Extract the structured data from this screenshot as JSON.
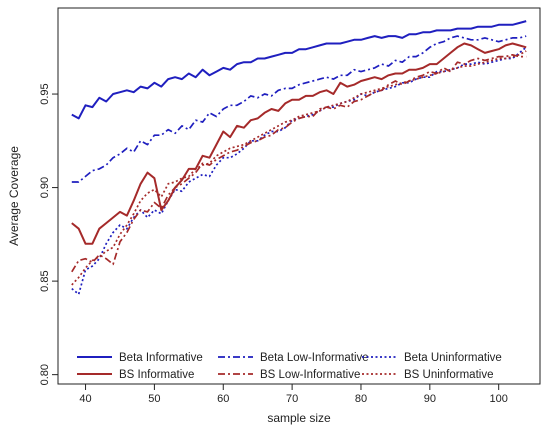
{
  "chart_data": {
    "type": "line",
    "title": "",
    "xlabel": "sample size",
    "ylabel": "Average Coverage",
    "xlim": [
      36,
      106
    ],
    "ylim": [
      0.795,
      0.996
    ],
    "x_ticks": [
      40,
      50,
      60,
      70,
      80,
      90,
      100
    ],
    "y_ticks": [
      0.8,
      0.85,
      0.9,
      0.95
    ],
    "y_tick_labels": [
      "0.80",
      "0.85",
      "0.90",
      "0.95"
    ],
    "grid": false,
    "legend_position": "bottom",
    "x": [
      38,
      39,
      40,
      41,
      42,
      43,
      44,
      45,
      46,
      47,
      48,
      49,
      50,
      51,
      52,
      53,
      54,
      55,
      56,
      57,
      58,
      59,
      60,
      61,
      62,
      63,
      64,
      65,
      66,
      67,
      68,
      69,
      70,
      71,
      72,
      73,
      74,
      75,
      76,
      77,
      78,
      79,
      80,
      81,
      82,
      83,
      84,
      85,
      86,
      87,
      88,
      89,
      90,
      91,
      92,
      93,
      94,
      95,
      96,
      97,
      98,
      99,
      100,
      101,
      102,
      103,
      104
    ],
    "series": [
      {
        "name": "Beta Informative",
        "color": "#1f1fbf",
        "dash": "solid",
        "width": 2,
        "values": [
          0.939,
          0.937,
          0.944,
          0.943,
          0.948,
          0.946,
          0.95,
          0.951,
          0.952,
          0.951,
          0.954,
          0.953,
          0.956,
          0.954,
          0.958,
          0.959,
          0.958,
          0.961,
          0.959,
          0.963,
          0.96,
          0.962,
          0.964,
          0.963,
          0.966,
          0.967,
          0.967,
          0.969,
          0.969,
          0.97,
          0.971,
          0.972,
          0.972,
          0.974,
          0.974,
          0.975,
          0.976,
          0.977,
          0.977,
          0.977,
          0.978,
          0.979,
          0.979,
          0.98,
          0.981,
          0.98,
          0.981,
          0.981,
          0.98,
          0.982,
          0.982,
          0.983,
          0.983,
          0.984,
          0.984,
          0.984,
          0.985,
          0.985,
          0.985,
          0.986,
          0.986,
          0.986,
          0.987,
          0.987,
          0.987,
          0.988,
          0.989
        ]
      },
      {
        "name": "Beta Low-Informative",
        "color": "#1f1fbf",
        "dash": "dashdot",
        "width": 1.7,
        "values": [
          0.903,
          0.903,
          0.906,
          0.909,
          0.91,
          0.912,
          0.916,
          0.918,
          0.921,
          0.919,
          0.925,
          0.923,
          0.928,
          0.928,
          0.931,
          0.929,
          0.933,
          0.931,
          0.936,
          0.935,
          0.94,
          0.938,
          0.942,
          0.944,
          0.944,
          0.946,
          0.949,
          0.948,
          0.95,
          0.949,
          0.952,
          0.953,
          0.953,
          0.955,
          0.956,
          0.957,
          0.958,
          0.959,
          0.958,
          0.96,
          0.96,
          0.963,
          0.962,
          0.963,
          0.964,
          0.966,
          0.965,
          0.968,
          0.967,
          0.97,
          0.97,
          0.972,
          0.975,
          0.977,
          0.978,
          0.98,
          0.981,
          0.98,
          0.979,
          0.979,
          0.98,
          0.979,
          0.978,
          0.979,
          0.98,
          0.98,
          0.981
        ]
      },
      {
        "name": "Beta Uninformative",
        "color": "#1f1fbf",
        "dash": "dot",
        "width": 1.7,
        "values": [
          0.846,
          0.843,
          0.856,
          0.858,
          0.862,
          0.87,
          0.876,
          0.88,
          0.878,
          0.884,
          0.888,
          0.884,
          0.888,
          0.886,
          0.893,
          0.899,
          0.898,
          0.903,
          0.905,
          0.907,
          0.906,
          0.912,
          0.916,
          0.916,
          0.918,
          0.921,
          0.925,
          0.925,
          0.928,
          0.93,
          0.93,
          0.932,
          0.936,
          0.937,
          0.938,
          0.939,
          0.941,
          0.943,
          0.943,
          0.945,
          0.946,
          0.947,
          0.95,
          0.949,
          0.951,
          0.952,
          0.953,
          0.954,
          0.956,
          0.956,
          0.958,
          0.959,
          0.959,
          0.962,
          0.962,
          0.963,
          0.964,
          0.966,
          0.966,
          0.967,
          0.966,
          0.967,
          0.968,
          0.969,
          0.969,
          0.972,
          0.975
        ]
      },
      {
        "name": "BS Informative",
        "color": "#a52a2a",
        "dash": "solid",
        "width": 2,
        "values": [
          0.881,
          0.878,
          0.87,
          0.87,
          0.878,
          0.881,
          0.884,
          0.887,
          0.885,
          0.893,
          0.902,
          0.908,
          0.905,
          0.888,
          0.893,
          0.9,
          0.904,
          0.91,
          0.91,
          0.917,
          0.916,
          0.923,
          0.93,
          0.927,
          0.933,
          0.932,
          0.936,
          0.937,
          0.94,
          0.942,
          0.941,
          0.945,
          0.947,
          0.947,
          0.949,
          0.949,
          0.951,
          0.952,
          0.95,
          0.956,
          0.954,
          0.955,
          0.957,
          0.958,
          0.959,
          0.958,
          0.96,
          0.961,
          0.961,
          0.963,
          0.963,
          0.964,
          0.966,
          0.966,
          0.969,
          0.972,
          0.975,
          0.977,
          0.976,
          0.974,
          0.972,
          0.973,
          0.974,
          0.976,
          0.977,
          0.976,
          0.975
        ]
      },
      {
        "name": "BS Low-Informative",
        "color": "#a52a2a",
        "dash": "dashdot",
        "width": 1.7,
        "values": [
          0.855,
          0.861,
          0.862,
          0.86,
          0.864,
          0.862,
          0.859,
          0.871,
          0.876,
          0.883,
          0.888,
          0.887,
          0.892,
          0.889,
          0.896,
          0.9,
          0.902,
          0.905,
          0.908,
          0.913,
          0.912,
          0.915,
          0.917,
          0.919,
          0.92,
          0.922,
          0.924,
          0.925,
          0.927,
          0.928,
          0.931,
          0.932,
          0.935,
          0.937,
          0.938,
          0.938,
          0.942,
          0.943,
          0.942,
          0.944,
          0.943,
          0.946,
          0.947,
          0.949,
          0.951,
          0.952,
          0.955,
          0.957,
          0.955,
          0.957,
          0.959,
          0.96,
          0.962,
          0.961,
          0.964,
          0.962,
          0.967,
          0.966,
          0.968,
          0.969,
          0.968,
          0.969,
          0.97,
          0.97,
          0.971,
          0.97,
          0.97
        ]
      },
      {
        "name": "BS Uninformative",
        "color": "#a52a2a",
        "dash": "dot",
        "width": 1.7,
        "values": [
          0.848,
          0.852,
          0.857,
          0.861,
          0.863,
          0.866,
          0.868,
          0.875,
          0.88,
          0.886,
          0.893,
          0.897,
          0.899,
          0.895,
          0.902,
          0.903,
          0.905,
          0.906,
          0.91,
          0.912,
          0.913,
          0.917,
          0.919,
          0.921,
          0.922,
          0.923,
          0.925,
          0.927,
          0.929,
          0.931,
          0.933,
          0.935,
          0.936,
          0.938,
          0.939,
          0.94,
          0.941,
          0.943,
          0.944,
          0.945,
          0.946,
          0.948,
          0.95,
          0.951,
          0.952,
          0.953,
          0.954,
          0.955,
          0.956,
          0.957,
          0.958,
          0.959,
          0.96,
          0.961,
          0.962,
          0.963,
          0.964,
          0.965,
          0.965,
          0.966,
          0.967,
          0.968,
          0.969,
          0.969,
          0.97,
          0.971,
          0.973
        ]
      }
    ]
  }
}
